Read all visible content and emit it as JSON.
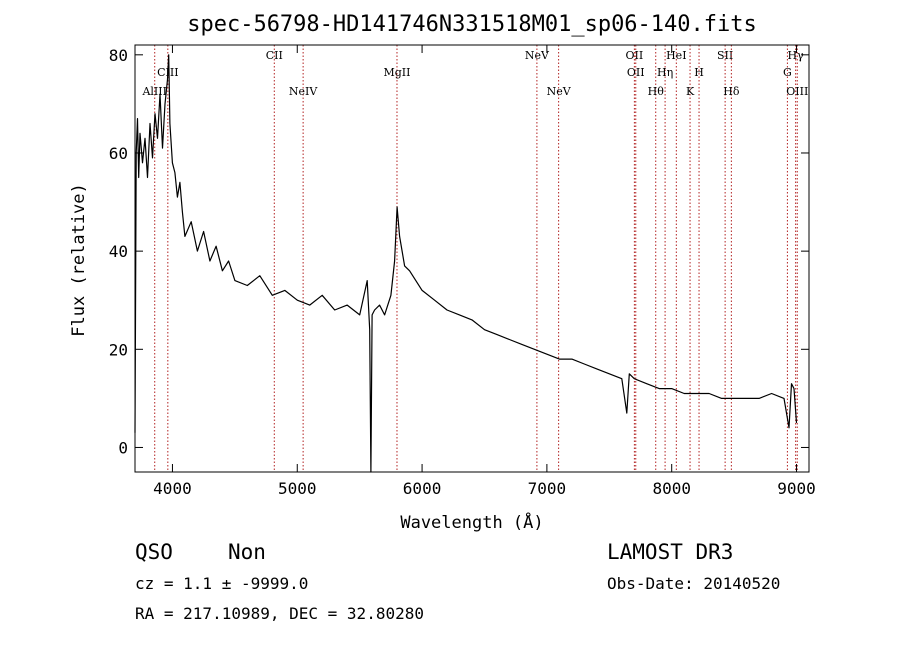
{
  "chart_data": {
    "type": "line",
    "title": "spec-56798-HD141746N331518M01_sp06-140.fits",
    "xlabel": "Wavelength (Å)",
    "ylabel": "Flux (relative)",
    "xlim": [
      3700,
      9100
    ],
    "ylim": [
      -5,
      82
    ],
    "xticks": [
      4000,
      5000,
      6000,
      7000,
      8000,
      9000
    ],
    "yticks": [
      0,
      20,
      40,
      60,
      80
    ],
    "line_color": "#000000",
    "marker_color": "#b22222",
    "series": [
      {
        "name": "flux",
        "x": [
          3700,
          3710,
          3720,
          3730,
          3740,
          3760,
          3780,
          3800,
          3820,
          3840,
          3860,
          3880,
          3900,
          3920,
          3940,
          3960,
          3970,
          3980,
          4000,
          4020,
          4040,
          4060,
          4080,
          4100,
          4150,
          4200,
          4250,
          4300,
          4350,
          4400,
          4450,
          4500,
          4600,
          4700,
          4800,
          4900,
          5000,
          5100,
          5200,
          5300,
          5400,
          5500,
          5560,
          5580,
          5590,
          5600,
          5620,
          5660,
          5700,
          5750,
          5780,
          5800,
          5820,
          5840,
          5860,
          5900,
          5950,
          6000,
          6100,
          6200,
          6300,
          6400,
          6500,
          6600,
          6700,
          6800,
          6900,
          7000,
          7100,
          7200,
          7300,
          7400,
          7500,
          7600,
          7640,
          7660,
          7700,
          7800,
          7900,
          8000,
          8100,
          8200,
          8300,
          8400,
          8500,
          8600,
          8700,
          8800,
          8900,
          8940,
          8960,
          8980,
          9000
        ],
        "values": [
          3,
          60,
          67,
          55,
          64,
          58,
          63,
          55,
          66,
          59,
          68,
          63,
          72,
          61,
          70,
          75,
          80,
          66,
          58,
          56,
          51,
          54,
          48,
          43,
          46,
          40,
          44,
          38,
          41,
          36,
          38,
          34,
          33,
          35,
          31,
          32,
          30,
          29,
          31,
          28,
          29,
          27,
          34,
          24,
          -5,
          27,
          28,
          29,
          27,
          31,
          38,
          49,
          43,
          40,
          37,
          36,
          34,
          32,
          30,
          28,
          27,
          26,
          24,
          23,
          22,
          21,
          20,
          19,
          18,
          18,
          17,
          16,
          15,
          14,
          7,
          15,
          14,
          13,
          12,
          12,
          11,
          11,
          11,
          10,
          10,
          10,
          10,
          11,
          10,
          4,
          13,
          12,
          5
        ]
      }
    ],
    "line_markers": [
      {
        "label": "AlIII",
        "x": 3858,
        "row": 3
      },
      {
        "label": "CIII",
        "x": 3963,
        "row": 2
      },
      {
        "label": "CII",
        "x": 4816,
        "row": 1
      },
      {
        "label": "NeIV",
        "x": 5047,
        "row": 3
      },
      {
        "label": "MgII",
        "x": 5799,
        "row": 2
      },
      {
        "label": "NeV",
        "x": 6920,
        "row": 1
      },
      {
        "label": "NeV",
        "x": 7094,
        "row": 3
      },
      {
        "label": "OII",
        "x": 7701,
        "row": 1
      },
      {
        "label": "OII",
        "x": 7712,
        "row": 2
      },
      {
        "label": "Hθ",
        "x": 7872,
        "row": 3
      },
      {
        "label": "Hη",
        "x": 7947,
        "row": 2
      },
      {
        "label": "HeI",
        "x": 8037,
        "row": 1
      },
      {
        "label": "K",
        "x": 8147,
        "row": 3
      },
      {
        "label": "H",
        "x": 8219,
        "row": 2
      },
      {
        "label": "SII",
        "x": 8428,
        "row": 1
      },
      {
        "label": "Hδ",
        "x": 8478,
        "row": 3
      },
      {
        "label": "G",
        "x": 8927,
        "row": 2
      },
      {
        "label": "Hγ",
        "x": 8993,
        "row": 1
      },
      {
        "label": "OIII",
        "x": 9006,
        "row": 3
      }
    ]
  },
  "info": {
    "class": "QSO",
    "subclass": "Non",
    "survey": "LAMOST DR3",
    "cz": "cz = 1.1 ± -9999.0",
    "obs_date": "Obs-Date: 20140520",
    "radec": "RA = 217.10989, DEC =  32.80280"
  }
}
